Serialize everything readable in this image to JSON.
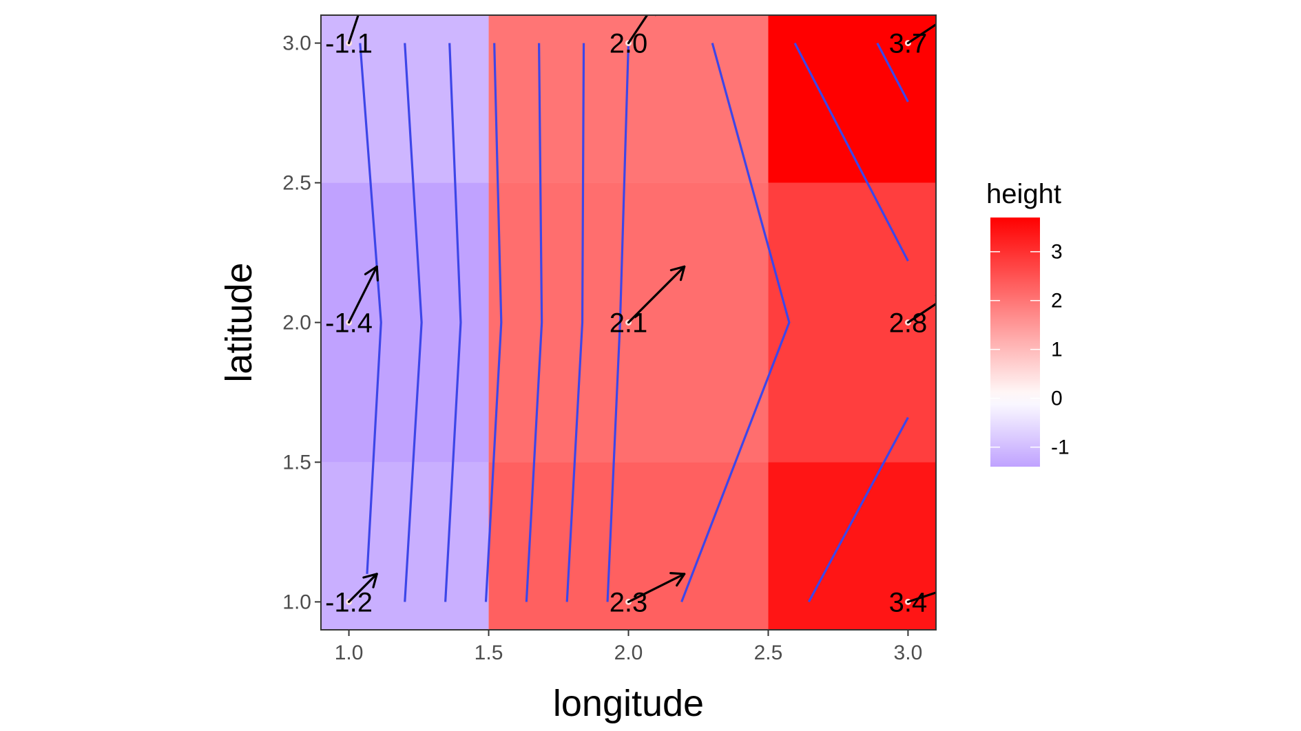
{
  "chart_data": {
    "type": "heatmap",
    "title": "",
    "xlabel": "longitude",
    "ylabel": "latitude",
    "xlim": [
      0.9,
      3.1
    ],
    "ylim": [
      0.9,
      3.1
    ],
    "x_ticks": [
      1.0,
      1.5,
      2.0,
      2.5,
      3.0
    ],
    "y_ticks": [
      1.0,
      1.5,
      2.0,
      2.5,
      3.0
    ],
    "x_tick_labels": [
      "1.0",
      "1.5",
      "2.0",
      "2.5",
      "3.0"
    ],
    "y_tick_labels": [
      "1.0",
      "1.5",
      "2.0",
      "2.5",
      "3.0"
    ],
    "grid": false,
    "cells": [
      {
        "x": 1,
        "y": 1,
        "height": -1.2,
        "label": "-1.2"
      },
      {
        "x": 1,
        "y": 2,
        "height": -1.4,
        "label": "-1.4"
      },
      {
        "x": 1,
        "y": 3,
        "height": -1.1,
        "label": "-1.1"
      },
      {
        "x": 2,
        "y": 1,
        "height": 2.3,
        "label": "2.3"
      },
      {
        "x": 2,
        "y": 2,
        "height": 2.1,
        "label": "2.1"
      },
      {
        "x": 2,
        "y": 3,
        "height": 2.0,
        "label": "2.0"
      },
      {
        "x": 3,
        "y": 1,
        "height": 3.4,
        "label": "3.4"
      },
      {
        "x": 3,
        "y": 2,
        "height": 2.8,
        "label": "2.8"
      },
      {
        "x": 3,
        "y": 3,
        "height": 3.7,
        "label": "3.7"
      }
    ],
    "arrows": [
      {
        "x": 1,
        "y": 1,
        "dx": 0.1,
        "dy": 0.1
      },
      {
        "x": 1,
        "y": 2,
        "dx": 0.1,
        "dy": 0.2
      },
      {
        "x": 1,
        "y": 3,
        "dx": 0.05,
        "dy": 0.15
      },
      {
        "x": 2,
        "y": 1,
        "dx": 0.2,
        "dy": 0.1
      },
      {
        "x": 2,
        "y": 2,
        "dx": 0.2,
        "dy": 0.2
      },
      {
        "x": 2,
        "y": 3,
        "dx": 0.1,
        "dy": 0.15
      },
      {
        "x": 3,
        "y": 1,
        "dx": 0.15,
        "dy": 0.05
      },
      {
        "x": 3,
        "y": 2,
        "dx": 0.15,
        "dy": 0.1
      },
      {
        "x": 3,
        "y": 3,
        "dx": 0.15,
        "dy": 0.1
      }
    ],
    "contour_lines": [
      [
        [
          1.04,
          3.0
        ],
        [
          1.115,
          2.0
        ],
        [
          1.065,
          1.1
        ]
      ],
      [
        [
          1.2,
          3.0
        ],
        [
          1.26,
          2.0
        ],
        [
          1.2,
          1.0
        ]
      ],
      [
        [
          1.36,
          3.0
        ],
        [
          1.4,
          2.0
        ],
        [
          1.345,
          1.0
        ]
      ],
      [
        [
          1.52,
          3.0
        ],
        [
          1.545,
          2.0
        ],
        [
          1.49,
          1.0
        ]
      ],
      [
        [
          1.68,
          3.0
        ],
        [
          1.69,
          2.0
        ],
        [
          1.635,
          1.0
        ]
      ],
      [
        [
          1.84,
          3.0
        ],
        [
          1.835,
          2.0
        ],
        [
          1.78,
          1.0
        ]
      ],
      [
        [
          2.0,
          3.0
        ],
        [
          1.97,
          2.0
        ],
        [
          1.925,
          1.0
        ]
      ],
      [
        [
          2.3,
          3.0
        ],
        [
          2.575,
          2.0
        ],
        [
          2.19,
          1.0
        ]
      ],
      [
        [
          2.595,
          3.0
        ],
        [
          3.0,
          2.22
        ]
      ],
      [
        [
          2.89,
          3.0
        ],
        [
          3.0,
          2.79
        ]
      ],
      [
        [
          2.645,
          1.0
        ],
        [
          3.0,
          1.66
        ]
      ]
    ],
    "legend": {
      "title": "height",
      "position": "right",
      "range": [
        -1.4,
        3.7
      ],
      "breaks": [
        -1,
        0,
        1,
        2,
        3
      ],
      "labels": [
        "-1",
        "0",
        "1",
        "2",
        "3"
      ],
      "low_color": "#c0a2ff",
      "mid_color": "#ffffff",
      "high_color": "#ff0000"
    },
    "colors": {
      "contour": "#3d46e8",
      "arrow": "#000000",
      "point": "#fbe0dc"
    }
  }
}
